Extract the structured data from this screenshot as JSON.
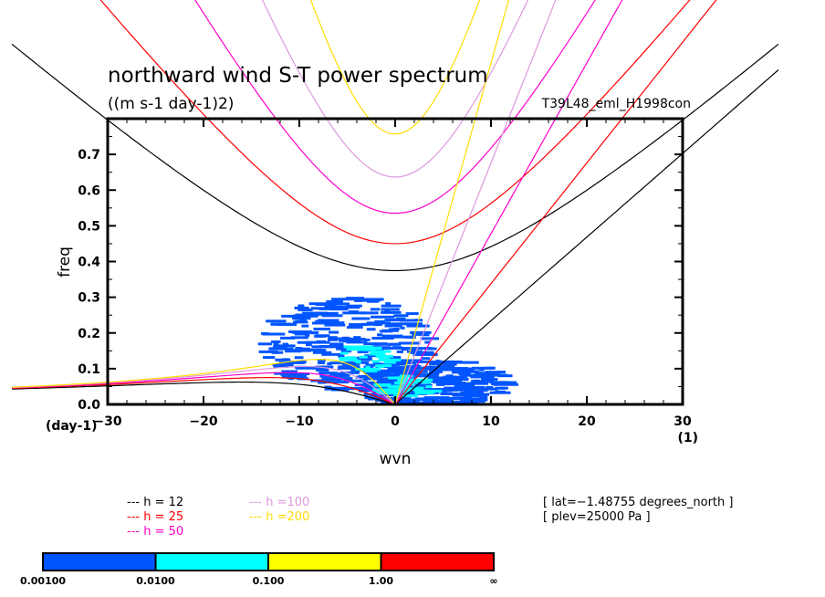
{
  "chart_data": {
    "type": "heatmap",
    "title": "northward wind S-T power spectrum",
    "units_label": "((m s-1 day-1)2)",
    "experiment_label": "T39L48_eml_H1998con",
    "xlabel": "wvn",
    "ylabel": "freq",
    "x_unit_label": "(1)",
    "y_unit_label": "(day-1)",
    "xlim": [
      -30,
      30
    ],
    "ylim": [
      0.0,
      0.8
    ],
    "xticks": [
      -30,
      -20,
      -10,
      0,
      10,
      20,
      30
    ],
    "xtick_labels": [
      "−30",
      "−20",
      "−10",
      "0",
      "10",
      "20",
      "30"
    ],
    "yticks": [
      0.0,
      0.1,
      0.2,
      0.3,
      0.4,
      0.5,
      0.6,
      0.7
    ],
    "ytick_labels": [
      "0.0",
      "0.1",
      "0.2",
      "0.3",
      "0.4",
      "0.5",
      "0.6",
      "0.7"
    ],
    "grid": false,
    "shading": {
      "levels": [
        0.001,
        0.01,
        0.1,
        1.0
      ],
      "level_labels": [
        "0.00100",
        "0.0100",
        "0.100",
        "1.00",
        "∞"
      ],
      "colors": [
        "#0055ff",
        "#00ffff",
        "#ffff00",
        "#ff0000"
      ],
      "region_description": "power >0.001 concentrated at wvn -12..10, freq 0..0.32; max near wvn -5..0, freq 0..0.2",
      "blobs": [
        {
          "wvn_center": -5,
          "freq_center": 0.17,
          "wvn_halfwidth": 7,
          "freq_halfwidth": 0.13,
          "level": 0
        },
        {
          "wvn_center": 4,
          "freq_center": 0.06,
          "wvn_halfwidth": 6,
          "freq_halfwidth": 0.07,
          "level": 0
        },
        {
          "wvn_center": -3,
          "freq_center": 0.13,
          "wvn_halfwidth": 2,
          "freq_halfwidth": 0.04,
          "level": 1
        },
        {
          "wvn_center": 1,
          "freq_center": 0.05,
          "wvn_halfwidth": 2.5,
          "freq_halfwidth": 0.03,
          "level": 1
        }
      ]
    },
    "dispersion_curves": {
      "equivalent_depths_m": [
        12,
        25,
        50,
        100,
        200
      ],
      "colors": [
        "#000000",
        "#ff0000",
        "#ff00cc",
        "#dd99dd",
        "#ffdd00"
      ],
      "legend_labels": [
        "h = 12",
        "h = 25",
        "h = 50",
        "h =100",
        "h =200"
      ],
      "legend_prefix": "---",
      "families": [
        "kelvin",
        "equatorial_rossby",
        "inertia_gravity_n1"
      ]
    },
    "annotations": [
      "[ lat=−1.48755 degrees_north ]",
      "[ plev=25000 Pa ]"
    ]
  }
}
